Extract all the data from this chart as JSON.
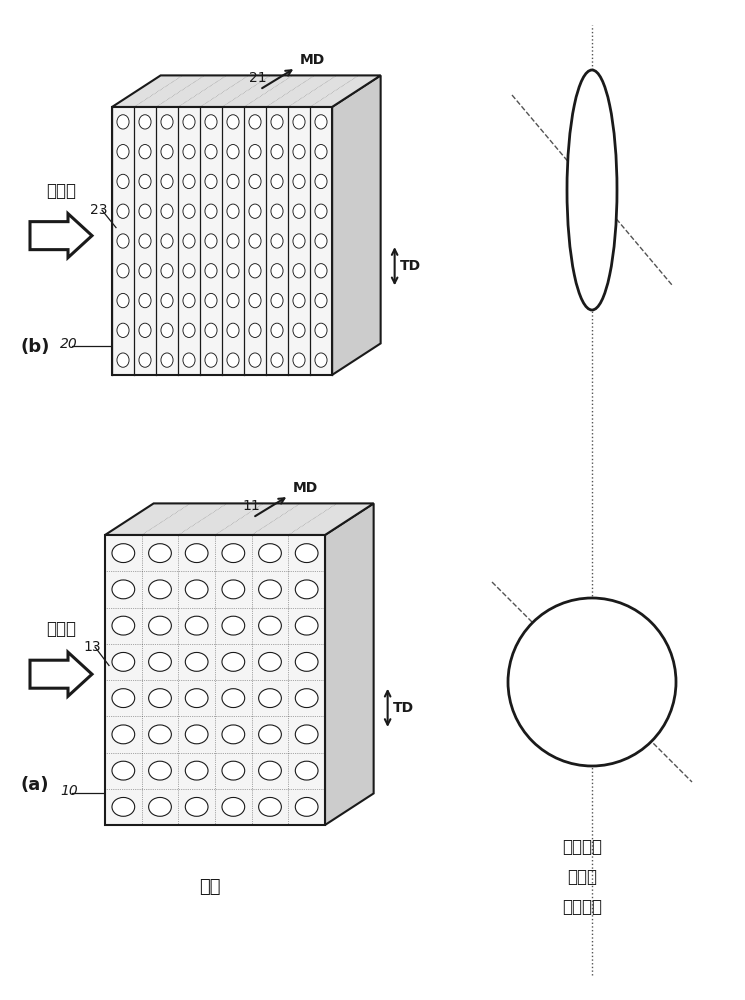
{
  "bg_color": "#ffffff",
  "lc": "#1a1a1a",
  "label_a": "(a)",
  "label_b": "(b)",
  "label_10": "10",
  "label_11": "11",
  "label_13": "13",
  "label_20": "20",
  "label_21": "21",
  "label_23": "23",
  "label_MD": "MD",
  "label_TD": "TD",
  "label_incident": "入射光",
  "label_structure": "構造",
  "label_ref1": "反射光の",
  "label_ref2": "散乱光",
  "label_ref3": "の广がり"
}
